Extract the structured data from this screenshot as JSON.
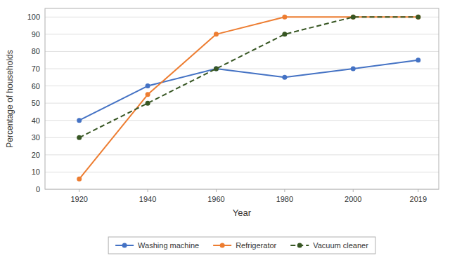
{
  "chart_data": {
    "type": "line",
    "xlabel": "Year",
    "ylabel": "Percentage of households",
    "x": [
      1920,
      1940,
      1960,
      1980,
      2000,
      2019
    ],
    "series": [
      {
        "name": "Washing machine",
        "color": "#4472C4",
        "values": [
          40,
          60,
          70,
          65,
          70,
          75
        ],
        "marker": "circle",
        "line_style": "solid"
      },
      {
        "name": "Refrigerator",
        "color": "#ED7D31",
        "values": [
          6,
          55,
          90,
          100,
          100,
          100
        ],
        "marker": "circle",
        "line_style": "solid"
      },
      {
        "name": "Vacuum cleaner",
        "color": "#375623",
        "values": [
          30,
          50,
          70,
          90,
          100,
          100
        ],
        "marker": "circle",
        "line_style": "dashed"
      }
    ],
    "xlim": [
      1910,
      2025
    ],
    "xticks": [
      1920,
      1940,
      1960,
      1980,
      2000,
      2019
    ],
    "ylim": [
      0,
      105
    ],
    "yticks": [
      0,
      10,
      20,
      30,
      40,
      50,
      60,
      70,
      80,
      90,
      100
    ],
    "grid": true,
    "legend": "bottom"
  }
}
